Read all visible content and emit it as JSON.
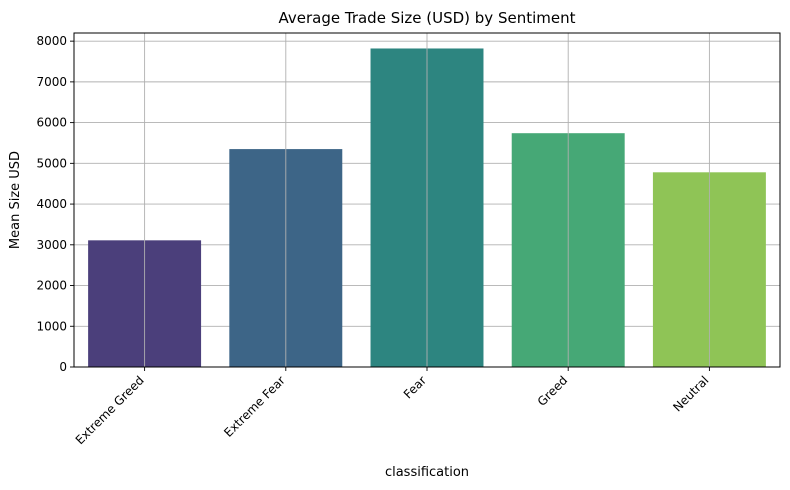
{
  "chart_data": {
    "type": "bar",
    "title": "Average Trade Size (USD) by Sentiment",
    "xlabel": "classification",
    "ylabel": "Mean Size USD",
    "categories": [
      "Extreme Greed",
      "Extreme Fear",
      "Fear",
      "Greed",
      "Neutral"
    ],
    "values": [
      3110,
      5350,
      7820,
      5740,
      4780
    ],
    "ylim": [
      0,
      8200
    ],
    "yticks": [
      0,
      1000,
      2000,
      3000,
      4000,
      5000,
      6000,
      7000,
      8000
    ],
    "grid": true,
    "colors": [
      "#4b3f7b",
      "#3d6587",
      "#2d8580",
      "#46a876",
      "#8fc456"
    ]
  }
}
